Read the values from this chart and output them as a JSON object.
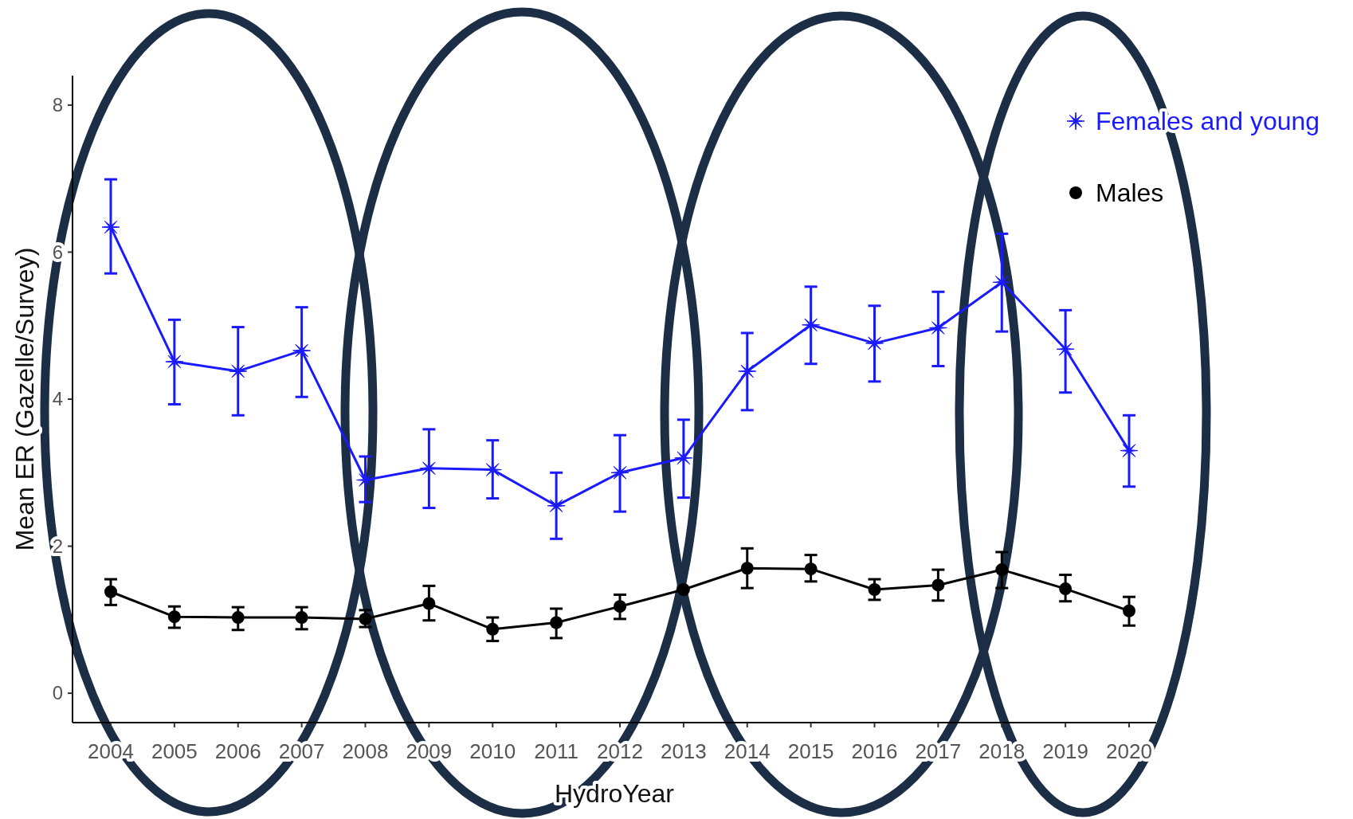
{
  "chart_data": {
    "type": "line",
    "xlabel": "HydroYear",
    "ylabel": "Mean ER (Gazelle/Survey)",
    "categories": [
      "2004",
      "2005",
      "2006",
      "2007",
      "2008",
      "2009",
      "2010",
      "2011",
      "2012",
      "2013",
      "2014",
      "2015",
      "2016",
      "2017",
      "2018",
      "2019",
      "2020"
    ],
    "ylim": [
      -0.4,
      8.4
    ],
    "yticks": [
      0,
      2,
      4,
      6,
      8
    ],
    "grid": false,
    "legend": "top right",
    "series": [
      {
        "name": "Females and young",
        "color": "#1a1aff",
        "marker": "star",
        "values": [
          6.34,
          4.51,
          4.38,
          4.66,
          2.9,
          3.06,
          3.04,
          2.55,
          3.0,
          3.2,
          4.38,
          5.01,
          4.76,
          4.97,
          5.59,
          4.68,
          3.3
        ],
        "errors": [
          [
            5.71,
            6.99
          ],
          [
            3.93,
            5.08
          ],
          [
            3.78,
            4.98
          ],
          [
            4.03,
            5.25
          ],
          [
            2.6,
            3.22
          ],
          [
            2.52,
            3.59
          ],
          [
            2.65,
            3.44
          ],
          [
            2.1,
            3.0
          ],
          [
            2.47,
            3.51
          ],
          [
            2.66,
            3.72
          ],
          [
            3.85,
            4.9
          ],
          [
            4.48,
            5.53
          ],
          [
            4.24,
            5.27
          ],
          [
            4.45,
            5.46
          ],
          [
            4.92,
            6.25
          ],
          [
            4.09,
            5.21
          ],
          [
            2.81,
            3.78
          ]
        ]
      },
      {
        "name": "Males",
        "color": "#000000",
        "marker": "circle",
        "values": [
          1.38,
          1.04,
          1.03,
          1.03,
          1.01,
          1.22,
          0.87,
          0.96,
          1.18,
          1.41,
          1.7,
          1.69,
          1.41,
          1.47,
          1.68,
          1.42,
          1.12
        ],
        "errors": [
          [
            1.2,
            1.55
          ],
          [
            0.89,
            1.18
          ],
          [
            0.86,
            1.17
          ],
          [
            0.87,
            1.17
          ],
          [
            0.9,
            1.13
          ],
          [
            0.99,
            1.46
          ],
          [
            0.71,
            1.03
          ],
          [
            0.75,
            1.15
          ],
          [
            1.01,
            1.34
          ],
          null,
          [
            1.43,
            1.97
          ],
          [
            1.52,
            1.88
          ],
          [
            1.27,
            1.55
          ],
          [
            1.26,
            1.68
          ],
          [
            1.43,
            1.92
          ],
          [
            1.25,
            1.61
          ],
          [
            0.92,
            1.31
          ]
        ]
      }
    ]
  }
}
